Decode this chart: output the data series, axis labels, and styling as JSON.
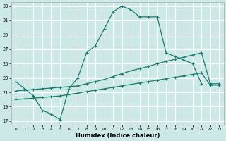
{
  "xlabel": "Humidex (Indice chaleur)",
  "bg_color": "#cce9e8",
  "grid_color": "#ffffff",
  "line_color": "#1a7a6e",
  "x_min": -0.5,
  "x_max": 23.5,
  "y_min": 16.5,
  "y_max": 33.5,
  "yticks": [
    17,
    19,
    21,
    23,
    25,
    27,
    29,
    31,
    33
  ],
  "xticks": [
    0,
    1,
    2,
    3,
    4,
    5,
    6,
    7,
    8,
    9,
    10,
    11,
    12,
    13,
    14,
    15,
    16,
    17,
    18,
    19,
    20,
    21,
    22,
    23
  ],
  "series1_x": [
    0,
    1,
    2,
    3,
    4,
    5,
    6,
    7,
    8,
    9,
    10,
    11,
    12,
    13,
    14,
    15,
    16,
    17,
    18,
    19,
    20,
    21
  ],
  "series1_y": [
    22.5,
    21.5,
    20.5,
    18.5,
    18.0,
    17.2,
    21.5,
    23.0,
    26.5,
    27.5,
    29.8,
    32.2,
    33.0,
    32.5,
    31.5,
    31.5,
    31.5,
    26.5,
    26.0,
    25.5,
    25.0,
    22.2
  ],
  "series2_x": [
    0,
    1,
    2,
    3,
    4,
    5,
    6,
    7,
    8,
    9,
    10,
    11,
    12,
    13,
    14,
    15,
    16,
    17,
    18,
    19,
    20,
    21,
    22,
    23
  ],
  "series2_y": [
    21.2,
    21.3,
    21.4,
    21.5,
    21.6,
    21.7,
    21.8,
    21.9,
    22.2,
    22.5,
    22.8,
    23.2,
    23.6,
    24.0,
    24.3,
    24.6,
    25.0,
    25.3,
    25.6,
    25.9,
    26.2,
    26.5,
    22.2,
    22.2
  ],
  "series3_x": [
    0,
    1,
    2,
    3,
    4,
    5,
    6,
    7,
    8,
    9,
    10,
    11,
    12,
    13,
    14,
    15,
    16,
    17,
    18,
    19,
    20,
    21,
    22,
    23
  ],
  "series3_y": [
    20.0,
    20.1,
    20.2,
    20.3,
    20.4,
    20.5,
    20.7,
    20.9,
    21.1,
    21.3,
    21.5,
    21.7,
    21.9,
    22.1,
    22.3,
    22.5,
    22.7,
    22.9,
    23.1,
    23.3,
    23.5,
    23.7,
    22.0,
    22.0
  ]
}
